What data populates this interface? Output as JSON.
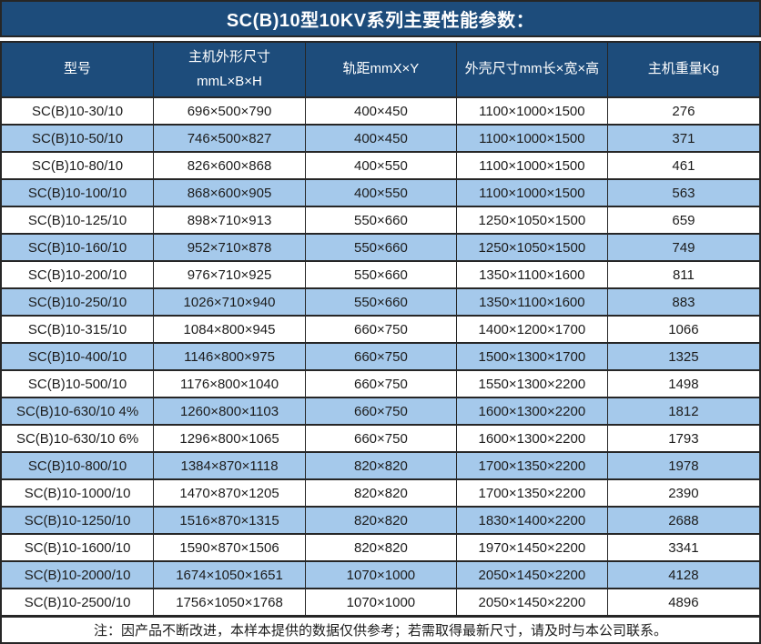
{
  "title": "SC(B)10型10KV系列主要性能参数：",
  "colors": {
    "title_header_bg": "#1D4C7B",
    "stripe_row_bg": "#A5C9EB",
    "plain_row_bg": "#FFFFFF",
    "border": "#262626",
    "header_text": "#FFFFFF",
    "body_text": "#1C1C1C"
  },
  "table": {
    "columns": [
      "型号",
      "主机外形尺寸\nmmL×B×H",
      "轨距mmX×Y",
      "外壳尺寸mm长×宽×高",
      "主机重量Kg"
    ],
    "rows": [
      [
        "SC(B)10-30/10",
        "696×500×790",
        "400×450",
        "1100×1000×1500",
        "276"
      ],
      [
        "SC(B)10-50/10",
        "746×500×827",
        "400×450",
        "1100×1000×1500",
        "371"
      ],
      [
        "SC(B)10-80/10",
        "826×600×868",
        "400×550",
        "1100×1000×1500",
        "461"
      ],
      [
        "SC(B)10-100/10",
        "868×600×905",
        "400×550",
        "1100×1000×1500",
        "563"
      ],
      [
        "SC(B)10-125/10",
        "898×710×913",
        "550×660",
        "1250×1050×1500",
        "659"
      ],
      [
        "SC(B)10-160/10",
        "952×710×878",
        "550×660",
        "1250×1050×1500",
        "749"
      ],
      [
        "SC(B)10-200/10",
        "976×710×925",
        "550×660",
        "1350×1100×1600",
        "811"
      ],
      [
        "SC(B)10-250/10",
        "1026×710×940",
        "550×660",
        "1350×1100×1600",
        "883"
      ],
      [
        "SC(B)10-315/10",
        "1084×800×945",
        "660×750",
        "1400×1200×1700",
        "1066"
      ],
      [
        "SC(B)10-400/10",
        "1146×800×975",
        "660×750",
        "1500×1300×1700",
        "1325"
      ],
      [
        "SC(B)10-500/10",
        "1176×800×1040",
        "660×750",
        "1550×1300×2200",
        "1498"
      ],
      [
        "SC(B)10-630/10 4%",
        "1260×800×1103",
        "660×750",
        "1600×1300×2200",
        "1812"
      ],
      [
        "SC(B)10-630/10 6%",
        "1296×800×1065",
        "660×750",
        "1600×1300×2200",
        "1793"
      ],
      [
        "SC(B)10-800/10",
        "1384×870×1118",
        "820×820",
        "1700×1350×2200",
        "1978"
      ],
      [
        "SC(B)10-1000/10",
        "1470×870×1205",
        "820×820",
        "1700×1350×2200",
        "2390"
      ],
      [
        "SC(B)10-1250/10",
        "1516×870×1315",
        "820×820",
        "1830×1400×2200",
        "2688"
      ],
      [
        "SC(B)10-1600/10",
        "1590×870×1506",
        "820×820",
        "1970×1450×2200",
        "3341"
      ],
      [
        "SC(B)10-2000/10",
        "1674×1050×1651",
        "1070×1000",
        "2050×1450×2200",
        "4128"
      ],
      [
        "SC(B)10-2500/10",
        "1756×1050×1768",
        "1070×1000",
        "2050×1450×2200",
        "4896"
      ]
    ]
  },
  "footnote": "注：因产品不断改进，本样本提供的数据仅供参考；若需取得最新尺寸，请及时与本公司联系。"
}
